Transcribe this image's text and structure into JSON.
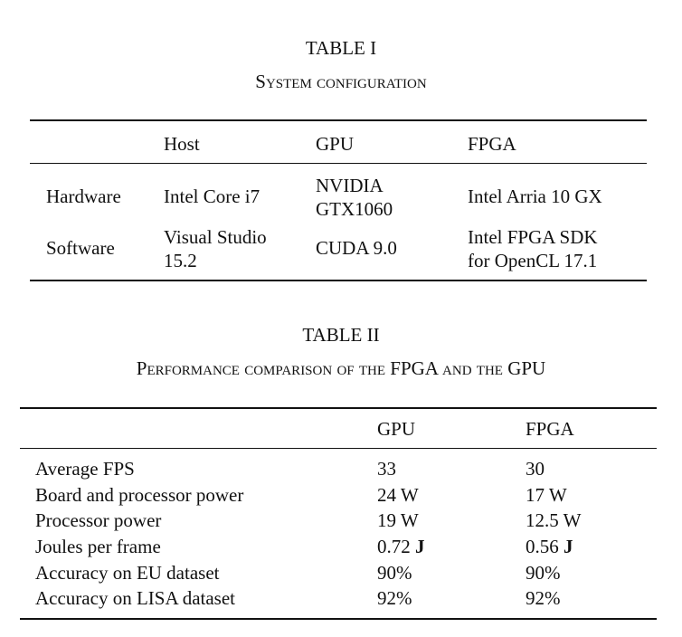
{
  "table1": {
    "label": "TABLE I",
    "title": "System configuration",
    "header": [
      "",
      "Host",
      "GPU",
      "FPGA"
    ],
    "rows": [
      {
        "label": "Hardware",
        "host": "Intel Core i7",
        "gpu": [
          "NVIDIA",
          "GTX1060"
        ],
        "fpga": [
          "Intel Arria 10 GX"
        ]
      },
      {
        "label": "Software",
        "host": [
          "Visual Studio",
          "15.2"
        ],
        "gpu": "CUDA 9.0",
        "fpga": [
          "Intel FPGA SDK",
          "for OpenCL 17.1"
        ]
      }
    ]
  },
  "table2": {
    "label": "TABLE II",
    "title": "Performance comparison of the FPGA and the GPU",
    "header": [
      "",
      "GPU",
      "FPGA"
    ],
    "rows": [
      {
        "metric": "Average FPS",
        "gpu": "33",
        "fpga": "30"
      },
      {
        "metric": "Board and processor power",
        "gpu": "24 W",
        "fpga": "17 W"
      },
      {
        "metric": "Processor power",
        "gpu": "19 W",
        "fpga": "12.5 W"
      },
      {
        "metric": "Joules per frame",
        "gpu_value": "0.72",
        "gpu_unit": "J",
        "fpga_value": "0.56",
        "fpga_unit": "J"
      },
      {
        "metric": "Accuracy on EU dataset",
        "gpu": "90%",
        "fpga": "90%"
      },
      {
        "metric": "Accuracy on LISA dataset",
        "gpu": "92%",
        "fpga": "92%"
      }
    ]
  }
}
